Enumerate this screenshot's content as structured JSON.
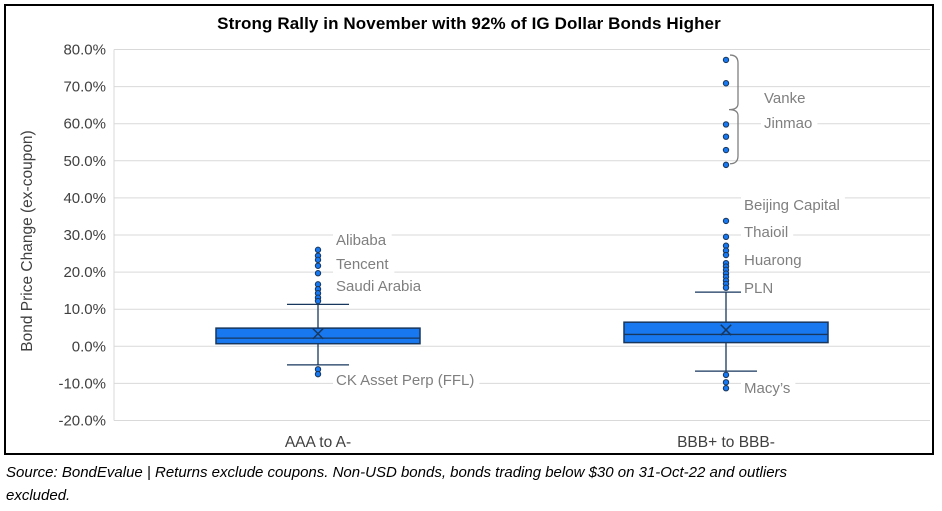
{
  "source": {
    "lines": [
      "Source: BondEvalue | Returns exclude coupons. Non-USD bonds, bonds trading below $30 on 31-Oct-22 and outliers",
      "excluded."
    ]
  },
  "colors": {
    "box_fill": "#1878F0",
    "box_border": "#17375E",
    "grid": "#D9D9D9",
    "axis_text": "#404040",
    "label_gray": "#7F7F7F",
    "bracket": "#808080",
    "title_text": "#000000"
  },
  "chart_data": {
    "type": "boxplot",
    "title": "Strong Rally in November with 92% of IG Dollar Bonds Higher",
    "ylabel": "Bond Price Change (ex-coupon)",
    "ylim": [
      -20,
      80
    ],
    "ytick_labels": [
      "80.0%",
      "70.0%",
      "60.0%",
      "50.0%",
      "40.0%",
      "30.0%",
      "20.0%",
      "10.0%",
      "0.0%",
      "-10.0%",
      "-20.0%"
    ],
    "grid": true,
    "categories": [
      "AAA to A-",
      "BBB+ to BBB-"
    ],
    "series": [
      {
        "name": "AAA to A-",
        "whisker_low": -5.0,
        "q1": 0.7,
        "median": 2.2,
        "q3": 4.9,
        "mean": 3.4,
        "whisker_high": 11.3,
        "outliers": [
          26.0,
          24.4,
          23.3,
          21.7,
          19.7,
          16.7,
          15.4,
          14.3,
          13.1,
          12.2,
          -6.2,
          -7.5
        ],
        "annotations": [
          {
            "label": "Alibaba",
            "value": 28.7
          },
          {
            "label": "Tencent",
            "value": 22.2
          },
          {
            "label": "Saudi Arabia",
            "value": 16.3
          },
          {
            "label": "CK Asset Perp (FFL)",
            "value": -9.1
          }
        ]
      },
      {
        "name": "BBB+ to BBB-",
        "whisker_low": -6.7,
        "q1": 1.0,
        "median": 3.2,
        "q3": 6.5,
        "mean": 4.4,
        "whisker_high": 14.6,
        "outliers": [
          77.2,
          70.9,
          59.8,
          56.5,
          52.9,
          48.9,
          33.8,
          29.5,
          27.1,
          25.8,
          24.6,
          22.4,
          21.5,
          20.6,
          19.6,
          18.7,
          17.7,
          16.8,
          15.8,
          -7.7,
          -9.7,
          -11.3
        ],
        "bracket": {
          "from": 78.5,
          "to": 49.2,
          "nub_at": 63.8
        },
        "annotations": [
          {
            "label": "Vanke",
            "value": 66.9,
            "far": true
          },
          {
            "label": "Jinmao",
            "value": 60.2,
            "far": true
          },
          {
            "label": "Beijing Capital",
            "value": 38.1
          },
          {
            "label": "Thaioil",
            "value": 30.8
          },
          {
            "label": "Huarong",
            "value": 23.3
          },
          {
            "label": "PLN",
            "value": 15.7
          },
          {
            "label": "Macy’s",
            "value": -11.2
          }
        ]
      }
    ]
  }
}
